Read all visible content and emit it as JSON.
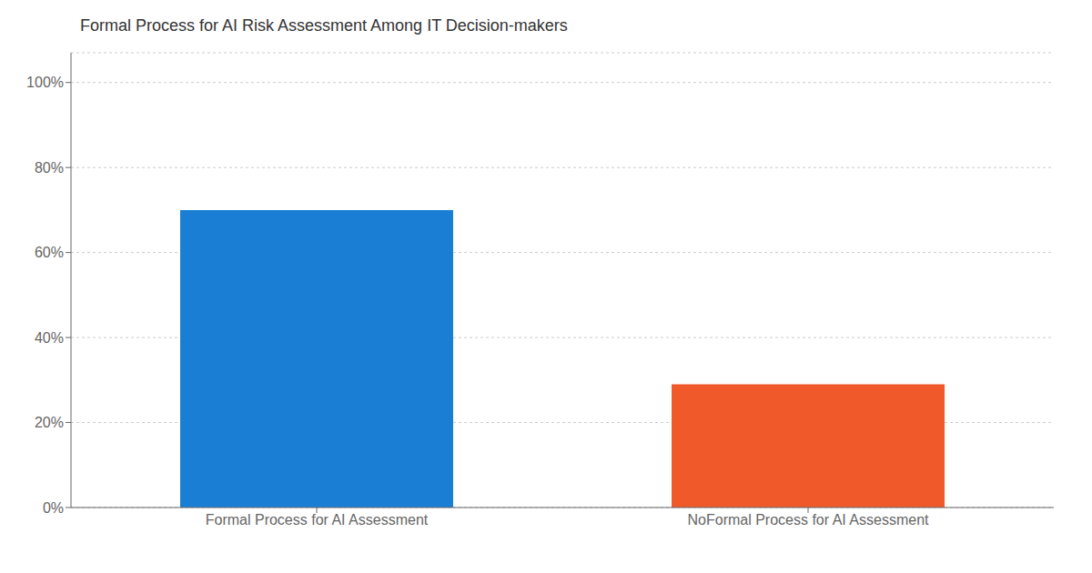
{
  "chart_data": {
    "type": "bar",
    "title": "Formal Process for AI Risk Assessment Among IT Decision-makers",
    "categories": [
      "Formal Process for AI Assessment",
      "NoFormal Process for AI Assessment"
    ],
    "values": [
      70,
      29
    ],
    "colors": [
      "#1a7fd4",
      "#f05a2a"
    ],
    "ylim": [
      0,
      107
    ],
    "yticks": [
      {
        "value": 0,
        "label": "0%"
      },
      {
        "value": 20,
        "label": "20%"
      },
      {
        "value": 40,
        "label": "40%"
      },
      {
        "value": 60,
        "label": "60%"
      },
      {
        "value": 80,
        "label": "80%"
      },
      {
        "value": 100,
        "label": "100%"
      }
    ],
    "grid": true
  }
}
